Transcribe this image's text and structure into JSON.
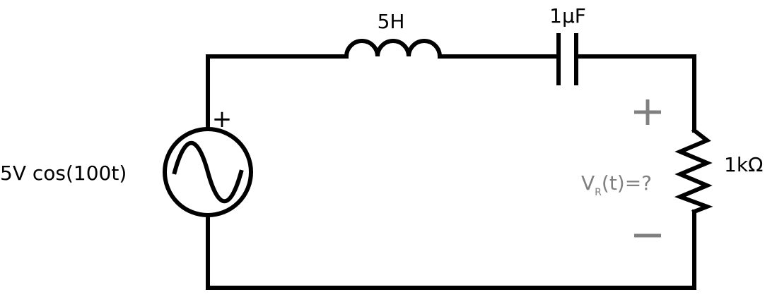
{
  "circuit": {
    "source": {
      "label": "5V cos(100t)",
      "plus": "+"
    },
    "inductor": {
      "label": "5H"
    },
    "capacitor": {
      "label": "1μF"
    },
    "resistor": {
      "label": "1kΩ"
    },
    "measurement": {
      "v": "V",
      "sub": "R",
      "rest": "(t)=?",
      "plus": "+",
      "minus": "−"
    },
    "colors": {
      "wire": "#000000",
      "annotation": "#808080"
    }
  }
}
